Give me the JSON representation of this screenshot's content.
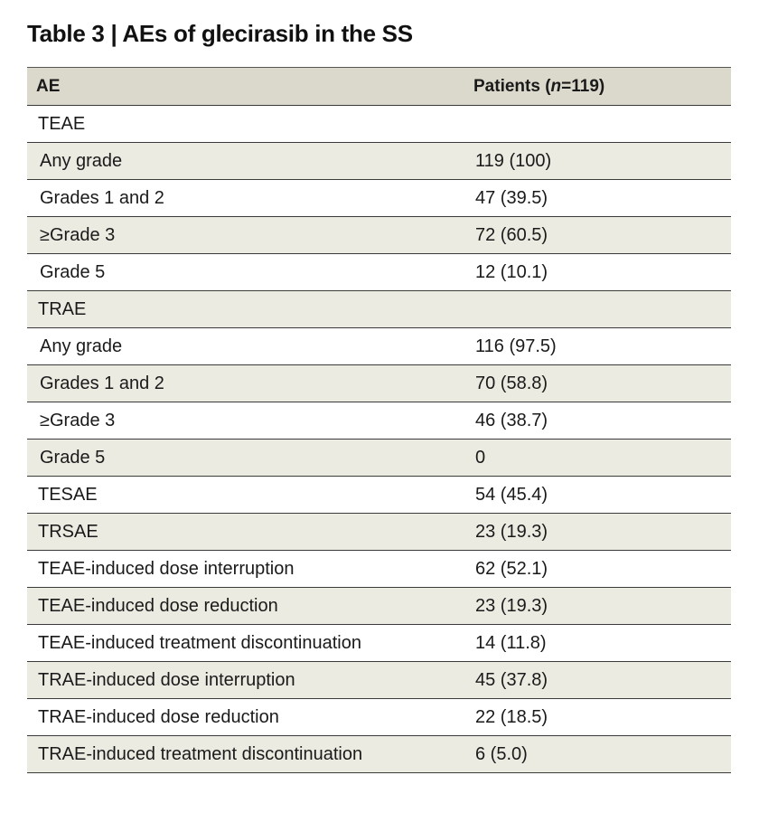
{
  "title": "Table 3 | AEs of glecirasib in the SS",
  "table": {
    "header": {
      "ae": "AE",
      "patients_prefix": "Patients (",
      "patients_n": "n",
      "patients_suffix": "=119)"
    },
    "rows": [
      {
        "ae": "TEAE",
        "value": ""
      },
      {
        "ae": "Any grade",
        "value": "119 (100)"
      },
      {
        "ae": "Grades 1 and 2",
        "value": "47 (39.5)"
      },
      {
        "ae": "≥Grade 3",
        "value": "72 (60.5)"
      },
      {
        "ae": "Grade 5",
        "value": "12 (10.1)"
      },
      {
        "ae": "TRAE",
        "value": ""
      },
      {
        "ae": "Any grade",
        "value": "116 (97.5)"
      },
      {
        "ae": "Grades 1 and 2",
        "value": "70 (58.8)"
      },
      {
        "ae": "≥Grade 3",
        "value": "46 (38.7)"
      },
      {
        "ae": "Grade 5",
        "value": "0"
      },
      {
        "ae": "TESAE",
        "value": "54 (45.4)"
      },
      {
        "ae": "TRSAE",
        "value": "23 (19.3)"
      },
      {
        "ae": "TEAE-induced dose interruption",
        "value": "62 (52.1)"
      },
      {
        "ae": "TEAE-induced dose reduction",
        "value": "23 (19.3)"
      },
      {
        "ae": "TEAE-induced treatment discontinuation",
        "value": "14 (11.8)"
      },
      {
        "ae": "TRAE-induced dose interruption",
        "value": "45 (37.8)"
      },
      {
        "ae": "TRAE-induced dose reduction",
        "value": "22 (18.5)"
      },
      {
        "ae": "TRAE-induced treatment discontinuation",
        "value": "6 (5.0)"
      }
    ]
  }
}
